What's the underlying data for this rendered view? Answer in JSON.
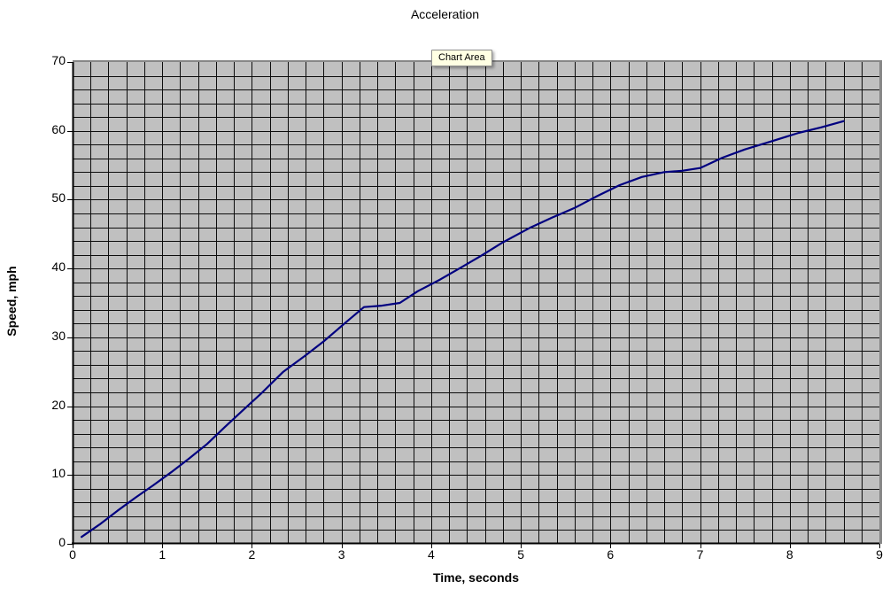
{
  "tooltip": {
    "label": "Chart Area"
  },
  "chart_data": {
    "type": "line",
    "title": "Acceleration",
    "xlabel": "Time, seconds",
    "ylabel": "Speed, mph",
    "xlim": [
      0,
      9
    ],
    "ylim": [
      0,
      70
    ],
    "x_ticks": [
      "0",
      "1",
      "2",
      "3",
      "4",
      "5",
      "6",
      "7",
      "8",
      "9"
    ],
    "y_ticks": [
      "0",
      "10",
      "20",
      "30",
      "40",
      "50",
      "60",
      "70"
    ],
    "x_minor_step": 0.2,
    "y_minor_step": 2,
    "grid": "minor-both-on",
    "legend_position": "none",
    "colors": {
      "line": "#000080",
      "plot_bg": "#c0c0c0",
      "gridline": "#0d0d0d",
      "axis": "#000000",
      "plot_border": "#878787",
      "tooltip_bg": "#ffffe3"
    },
    "series": [
      {
        "points": [
          [
            0.1,
            1.0
          ],
          [
            0.3,
            2.8
          ],
          [
            0.5,
            4.8
          ],
          [
            0.7,
            6.7
          ],
          [
            0.9,
            8.5
          ],
          [
            1.1,
            10.4
          ],
          [
            1.3,
            12.4
          ],
          [
            1.5,
            14.5
          ],
          [
            1.7,
            17.0
          ],
          [
            1.9,
            19.4
          ],
          [
            2.1,
            21.8
          ],
          [
            2.35,
            25.0
          ],
          [
            2.6,
            27.4
          ],
          [
            2.8,
            29.4
          ],
          [
            3.05,
            32.2
          ],
          [
            3.25,
            34.4
          ],
          [
            3.45,
            34.6
          ],
          [
            3.65,
            35.0
          ],
          [
            3.85,
            36.7
          ],
          [
            4.1,
            38.4
          ],
          [
            4.3,
            39.9
          ],
          [
            4.55,
            41.8
          ],
          [
            4.8,
            43.8
          ],
          [
            5.1,
            45.9
          ],
          [
            5.35,
            47.4
          ],
          [
            5.6,
            48.8
          ],
          [
            5.85,
            50.5
          ],
          [
            6.1,
            52.1
          ],
          [
            6.35,
            53.3
          ],
          [
            6.6,
            54.0
          ],
          [
            6.8,
            54.2
          ],
          [
            7.0,
            54.6
          ],
          [
            7.25,
            56.1
          ],
          [
            7.5,
            57.3
          ],
          [
            7.8,
            58.5
          ],
          [
            8.1,
            59.7
          ],
          [
            8.35,
            60.5
          ],
          [
            8.6,
            61.4
          ]
        ]
      }
    ]
  }
}
